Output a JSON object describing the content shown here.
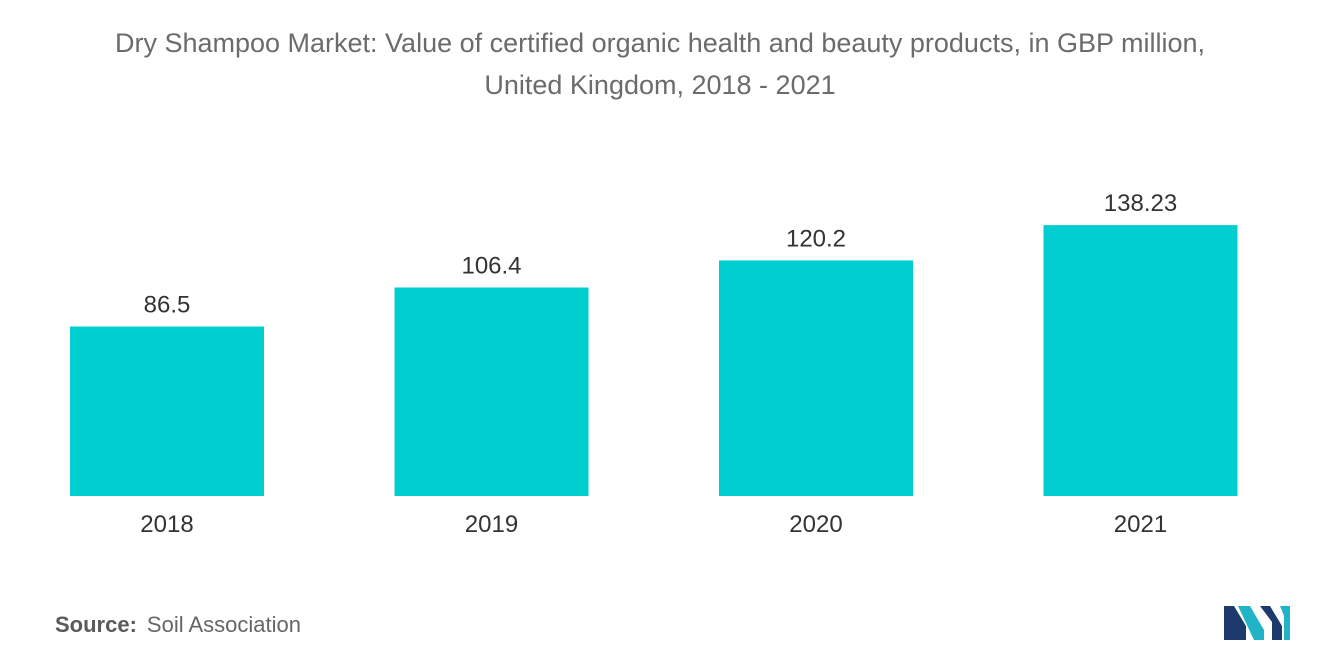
{
  "title_lines": [
    "Dry Shampoo Market: Value of certified organic health and beauty products, in GBP million,",
    "United Kingdom, 2018 - 2021"
  ],
  "source": {
    "label": "Source:",
    "text": "Soil Association"
  },
  "logo": {
    "icon": "mordor-intelligence-logo-icon",
    "colors": [
      "#1d3a6e",
      "#21b3c6"
    ]
  },
  "chart_data": {
    "type": "bar",
    "title": "Dry Shampoo Market: Value of certified organic health and beauty products, in GBP million, United Kingdom, 2018 - 2021",
    "categories": [
      "2018",
      "2019",
      "2020",
      "2021"
    ],
    "values": [
      86.5,
      106.4,
      120.2,
      138.23
    ],
    "value_labels": [
      "86.5",
      "106.4",
      "120.2",
      "138.23"
    ],
    "xlabel": "",
    "ylabel": "",
    "ylim": [
      0,
      160
    ],
    "bar_color": "#00ced1",
    "grid": false,
    "legend": "none"
  }
}
